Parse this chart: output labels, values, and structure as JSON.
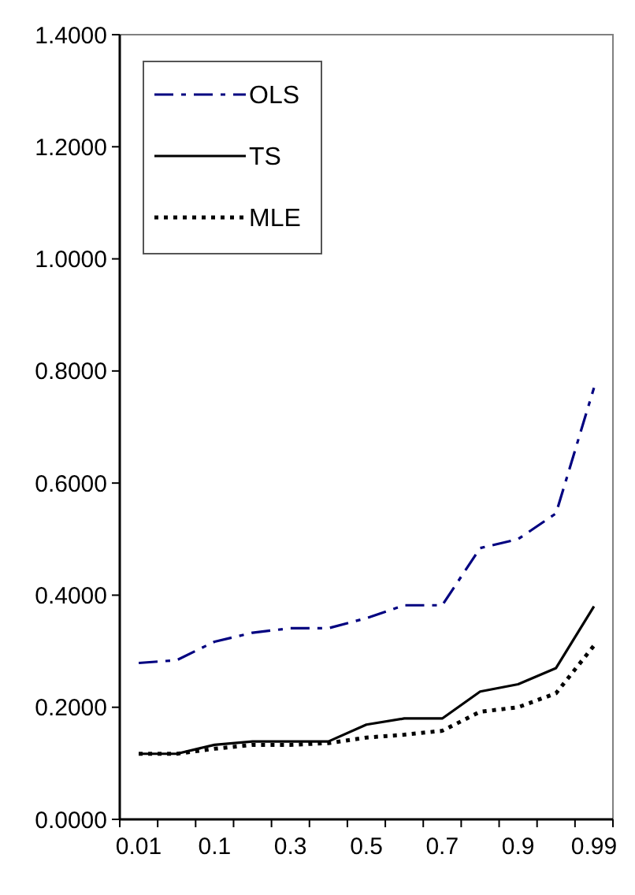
{
  "chart_data": {
    "type": "line",
    "categories": [
      "0.01",
      null,
      "0.1",
      null,
      "0.3",
      null,
      "0.5",
      null,
      "0.7",
      null,
      "0.9",
      null,
      "0.99"
    ],
    "series": [
      {
        "name": "OLS",
        "color": "#000080",
        "line_style": "dashdot",
        "values": [
          0.279,
          0.284,
          0.317,
          0.333,
          0.341,
          0.341,
          0.359,
          0.382,
          0.382,
          0.484,
          0.5,
          0.546,
          0.77
        ]
      },
      {
        "name": "TS",
        "color": "#000000",
        "line_style": "solid",
        "values": [
          0.117,
          0.117,
          0.133,
          0.139,
          0.139,
          0.139,
          0.169,
          0.18,
          0.18,
          0.228,
          0.241,
          0.27,
          0.38
        ]
      },
      {
        "name": "MLE",
        "color": "#000000",
        "line_style": "dotted",
        "values": [
          0.117,
          0.117,
          0.126,
          0.133,
          0.133,
          0.136,
          0.146,
          0.151,
          0.158,
          0.192,
          0.2,
          0.225,
          0.31
        ]
      }
    ],
    "ylim": [
      0,
      1.4
    ],
    "yticks": [
      {
        "value": 0,
        "label": "0.0000"
      },
      {
        "value": 0.2,
        "label": "0.2000"
      },
      {
        "value": 0.4,
        "label": "0.4000"
      },
      {
        "value": 0.6,
        "label": "0.6000"
      },
      {
        "value": 0.8,
        "label": "0.8000"
      },
      {
        "value": 1,
        "label": "1.0000"
      },
      {
        "value": 1.2,
        "label": "1.2000"
      },
      {
        "value": 1.4,
        "label": "1.4000"
      }
    ],
    "legend": "top left",
    "grid": false,
    "marker": "none"
  }
}
